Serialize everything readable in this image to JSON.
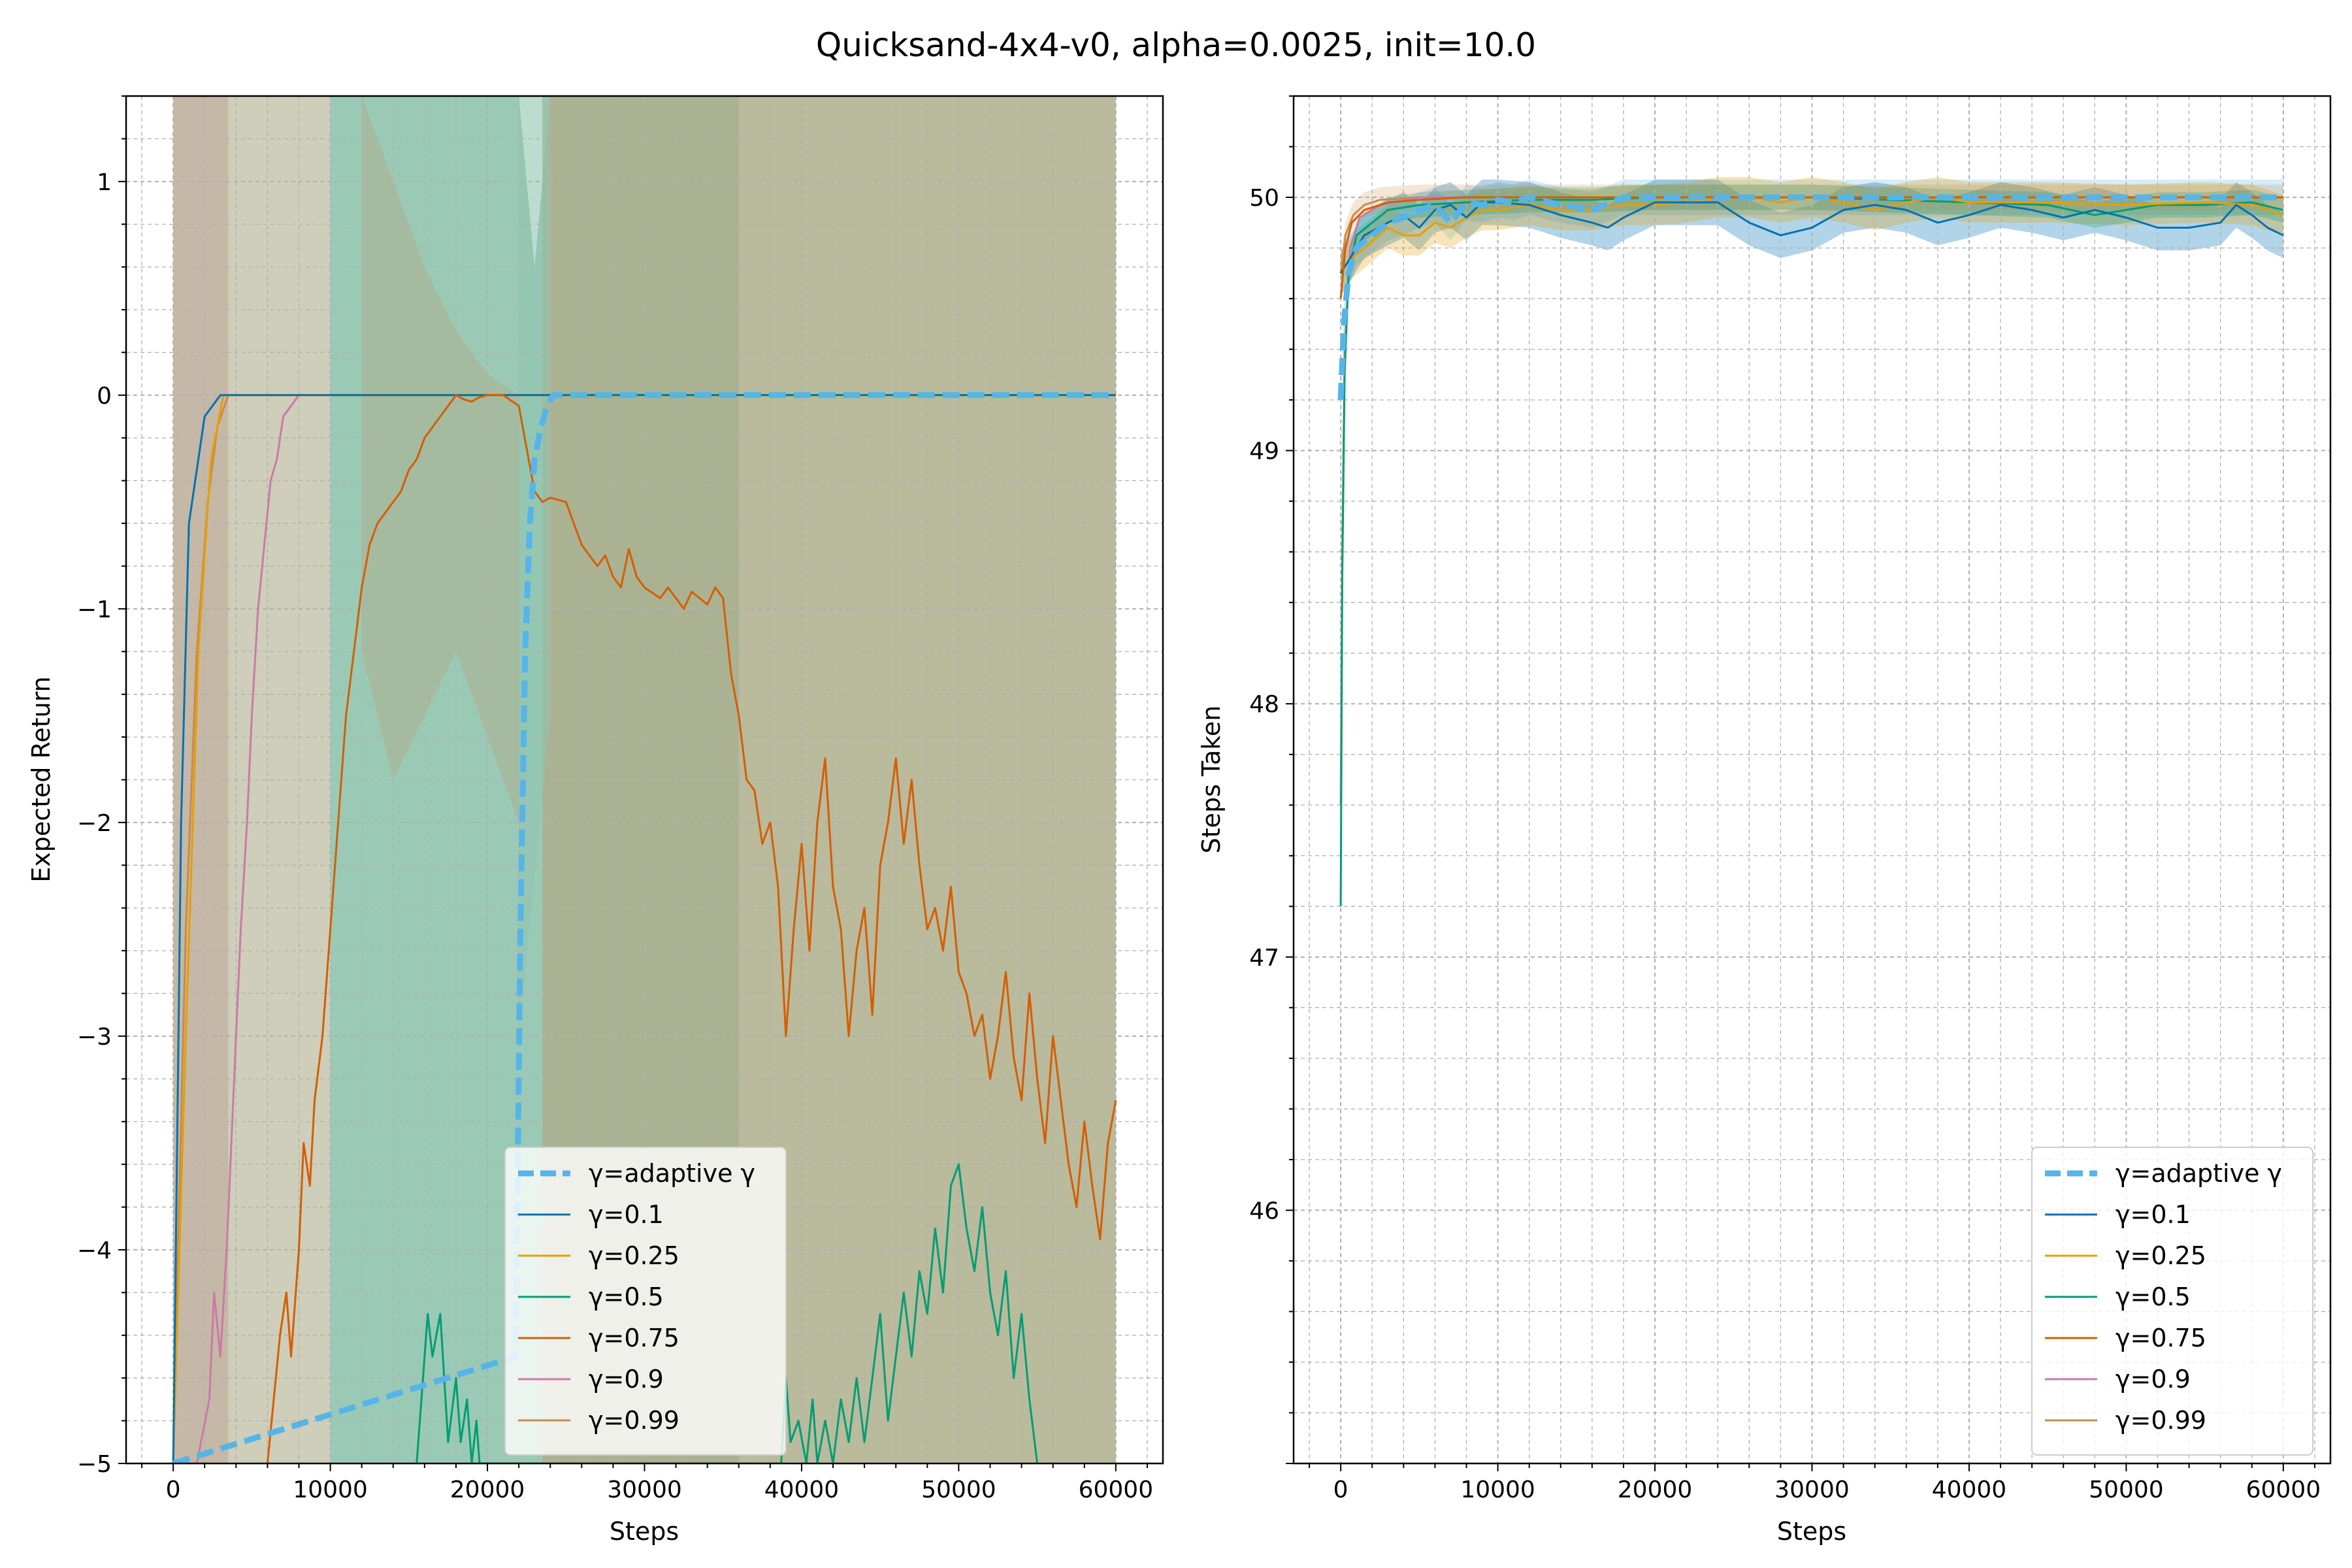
{
  "figure_title": "Quicksand-4x4-v0, alpha=0.0025, init=10.0",
  "colors": {
    "adaptive": "#56B4E9",
    "g0.1": "#0072B2",
    "g0.25": "#E69F00",
    "g0.5": "#009E73",
    "g0.75": "#D55E00",
    "g0.9": "#CC79A7",
    "g0.99": "#C98A4B",
    "band_teal": "#8FC4AE",
    "band_olive": "#AEAE8C",
    "band_pink": "#E3B9C2",
    "grid": "#b0b0b0"
  },
  "chart_data": [
    {
      "type": "line",
      "title": "",
      "xlabel": "Steps",
      "ylabel": "Expected Return",
      "xlim": [
        -3000,
        63000
      ],
      "ylim": [
        -5,
        1.4
      ],
      "xticks": [
        0,
        10000,
        20000,
        30000,
        40000,
        50000,
        60000
      ],
      "yticks": [
        -5,
        -4,
        -3,
        -2,
        -1,
        0,
        1
      ],
      "grid": true,
      "legend_position": "lower-center",
      "series": [
        {
          "name": "γ=adaptive γ",
          "key": "adaptive",
          "style": "dashed",
          "x": [
            0,
            21800,
            22100,
            22400,
            22700,
            23000,
            23400,
            23800,
            24200,
            24600,
            60000
          ],
          "y": [
            -5,
            -4.5,
            -2.5,
            -1.2,
            -0.6,
            -0.3,
            -0.15,
            -0.05,
            0,
            0,
            0
          ]
        },
        {
          "name": "γ=0.1",
          "key": "g0.1",
          "x": [
            0,
            500,
            1000,
            2000,
            3000,
            60000
          ],
          "y": [
            -5,
            -2,
            -0.6,
            -0.1,
            0,
            0
          ]
        },
        {
          "name": "γ=0.25",
          "key": "g0.25",
          "x": [
            0,
            800,
            1600,
            2400,
            3200,
            60000
          ],
          "y": [
            -5,
            -3,
            -1.2,
            -0.3,
            0,
            0
          ]
        },
        {
          "name": "γ=0.5",
          "key": "g0.5",
          "x": [
            15500,
            16200,
            16500,
            17000,
            17500,
            18000,
            18300,
            18700,
            19000,
            19300,
            19500,
            38700,
            39000,
            39300,
            39800,
            40300,
            40700,
            41000,
            41500,
            42000,
            42500,
            43000,
            43500,
            44000,
            44500,
            45000,
            45500,
            46000,
            46500,
            47000,
            47500,
            48000,
            48500,
            49000,
            49500,
            50000,
            50500,
            51000,
            51500,
            52000,
            52500,
            53000,
            53500,
            54000,
            54500,
            55000
          ],
          "y": [
            -5,
            -4.3,
            -4.5,
            -4.3,
            -4.9,
            -4.6,
            -4.9,
            -4.7,
            -5,
            -4.8,
            -5,
            -5,
            -4.6,
            -4.9,
            -4.8,
            -5,
            -4.7,
            -5,
            -4.8,
            -5,
            -4.7,
            -4.9,
            -4.6,
            -4.9,
            -4.6,
            -4.3,
            -4.8,
            -4.5,
            -4.2,
            -4.5,
            -4.1,
            -4.3,
            -3.9,
            -4.2,
            -3.7,
            -3.6,
            -3.9,
            -4.1,
            -3.8,
            -4.2,
            -4.4,
            -4.1,
            -4.6,
            -4.3,
            -4.7,
            -5
          ]
        },
        {
          "name": "γ=0.75",
          "key": "g0.75",
          "x": [
            6000,
            6400,
            6800,
            7200,
            7500,
            8000,
            8300,
            8700,
            9000,
            9500,
            10000,
            10500,
            11000,
            11500,
            12000,
            12500,
            13000,
            13500,
            14000,
            14500,
            15000,
            15500,
            16000,
            16500,
            17000,
            17500,
            18000,
            18500,
            19000,
            19500,
            20000,
            21000,
            22000,
            23000,
            23500,
            24000,
            25000,
            26000,
            26500,
            27000,
            27500,
            28000,
            28500,
            29000,
            29500,
            30000,
            31000,
            31500,
            32000,
            32500,
            33000,
            33500,
            34000,
            34500,
            35000,
            35500,
            36000,
            36500,
            37000,
            37500,
            38000,
            38500,
            39000,
            39500,
            40000,
            40500,
            41000,
            41500,
            42000,
            42500,
            43000,
            43500,
            44000,
            44500,
            45000,
            45500,
            46000,
            46500,
            47000,
            47500,
            48000,
            48500,
            49000,
            49500,
            50000,
            50500,
            51000,
            51500,
            52000,
            52500,
            53000,
            53500,
            54000,
            54500,
            55000,
            55500,
            56000,
            56500,
            57000,
            57500,
            58000,
            58500,
            59000,
            59500,
            60000
          ],
          "y": [
            -5,
            -4.7,
            -4.4,
            -4.2,
            -4.5,
            -4.0,
            -3.5,
            -3.7,
            -3.3,
            -3.0,
            -2.5,
            -2.0,
            -1.5,
            -1.2,
            -0.9,
            -0.7,
            -0.6,
            -0.55,
            -0.5,
            -0.45,
            -0.35,
            -0.3,
            -0.2,
            -0.15,
            -0.1,
            -0.05,
            0,
            -0.02,
            -0.03,
            -0.01,
            0,
            0,
            -0.05,
            -0.45,
            -0.5,
            -0.48,
            -0.5,
            -0.7,
            -0.75,
            -0.8,
            -0.75,
            -0.85,
            -0.9,
            -0.72,
            -0.85,
            -0.9,
            -0.95,
            -0.9,
            -0.95,
            -1.0,
            -0.92,
            -0.95,
            -0.98,
            -0.9,
            -0.95,
            -1.3,
            -1.5,
            -1.8,
            -1.85,
            -2.1,
            -2.0,
            -2.3,
            -3.0,
            -2.5,
            -2.1,
            -2.6,
            -2.0,
            -1.7,
            -2.3,
            -2.5,
            -3.0,
            -2.6,
            -2.4,
            -2.9,
            -2.2,
            -2.0,
            -1.7,
            -2.1,
            -1.8,
            -2.2,
            -2.5,
            -2.4,
            -2.6,
            -2.3,
            -2.7,
            -2.8,
            -3.0,
            -2.9,
            -3.2,
            -3.0,
            -2.7,
            -3.1,
            -3.3,
            -2.8,
            -3.2,
            -3.5,
            -3.0,
            -3.3,
            -3.6,
            -3.8,
            -3.4,
            -3.7,
            -3.95,
            -3.5,
            -3.3
          ]
        },
        {
          "name": "γ=0.9",
          "key": "g0.9",
          "x": [
            0,
            1500,
            2300,
            2600,
            3000,
            3400,
            3700,
            4000,
            4300,
            4700,
            5000,
            5400,
            5800,
            6200,
            6600,
            7000,
            7500,
            8000
          ],
          "y": [
            -5,
            -5,
            -4.7,
            -4.2,
            -4.5,
            -4.0,
            -3.5,
            -3.0,
            -2.5,
            -2.0,
            -1.5,
            -1.0,
            -0.7,
            -0.4,
            -0.3,
            -0.1,
            -0.05,
            0
          ]
        },
        {
          "name": "γ=0.99",
          "key": "g0.99",
          "x": [
            0,
            300,
            800,
            1500,
            2200,
            2800,
            3500,
            60000
          ],
          "y": [
            -5,
            -4,
            -2.5,
            -1.2,
            -0.5,
            -0.15,
            0,
            0
          ]
        }
      ]
    },
    {
      "type": "line",
      "title": "",
      "xlabel": "Steps",
      "ylabel": "Steps Taken",
      "xlim": [
        -3000,
        63000
      ],
      "ylim": [
        45.0,
        50.4
      ],
      "xticks": [
        0,
        10000,
        20000,
        30000,
        40000,
        50000,
        60000
      ],
      "yticks": [
        46,
        47,
        48,
        49,
        50
      ],
      "grid": true,
      "legend_position": "lower-right",
      "series": [
        {
          "name": "γ=adaptive γ",
          "key": "adaptive",
          "style": "dashed",
          "x": [
            0,
            200,
            500,
            1000,
            2000,
            3000,
            4000,
            5000,
            6000,
            7000,
            8000,
            9000,
            10000,
            11000,
            12000,
            14000,
            16000,
            18000,
            20000,
            24000,
            60000
          ],
          "y": [
            49.2,
            49.5,
            49.7,
            49.8,
            49.85,
            49.9,
            49.92,
            49.95,
            49.97,
            49.9,
            49.98,
            49.97,
            49.99,
            49.98,
            50.0,
            49.97,
            49.95,
            50.0,
            50.0,
            50.0,
            50.0
          ]
        },
        {
          "name": "γ=0.1",
          "key": "g0.1",
          "x": [
            0,
            500,
            1500,
            3000,
            4000,
            5000,
            6000,
            7000,
            8000,
            9000,
            10000,
            12000,
            14000,
            16000,
            17000,
            18000,
            19000,
            20000,
            24000,
            26000,
            28000,
            30000,
            32000,
            34000,
            36000,
            38000,
            40000,
            42000,
            44000,
            46000,
            48000,
            50000,
            52000,
            54000,
            56000,
            57000,
            58000,
            59000,
            60000
          ],
          "y": [
            49.7,
            49.75,
            49.85,
            49.9,
            49.93,
            49.88,
            49.95,
            49.97,
            49.92,
            49.98,
            49.98,
            49.97,
            49.93,
            49.9,
            49.88,
            49.92,
            49.95,
            49.98,
            49.98,
            49.9,
            49.85,
            49.88,
            49.95,
            49.97,
            49.95,
            49.9,
            49.93,
            49.97,
            49.95,
            49.92,
            49.95,
            49.92,
            49.88,
            49.88,
            49.9,
            49.97,
            49.93,
            49.88,
            49.85
          ]
        },
        {
          "name": "γ=0.25",
          "key": "g0.25",
          "x": [
            0,
            500,
            1500,
            3000,
            4000,
            5000,
            6000,
            7000,
            8000,
            9000,
            10000,
            12000,
            14000,
            16000,
            18000,
            20000,
            22000,
            24000,
            26000,
            28000,
            30000,
            32000,
            34000,
            36000,
            38000,
            40000,
            45000,
            50000,
            55000,
            58000,
            60000
          ],
          "y": [
            49.7,
            49.75,
            49.8,
            49.88,
            49.85,
            49.85,
            49.9,
            49.88,
            49.92,
            49.95,
            49.95,
            49.97,
            49.95,
            49.95,
            49.97,
            49.97,
            49.98,
            50.0,
            50.0,
            49.98,
            50.0,
            49.98,
            49.95,
            49.98,
            50.0,
            49.98,
            49.98,
            49.97,
            49.98,
            49.97,
            49.93
          ]
        },
        {
          "name": "γ=0.5",
          "key": "g0.5",
          "x": [
            0,
            100,
            250,
            500,
            1000,
            2000,
            3000,
            5000,
            8000,
            12000,
            16000,
            20000,
            30000,
            40000,
            45000,
            48000,
            50000,
            52000,
            55000,
            58000,
            60000
          ],
          "y": [
            47.2,
            48.5,
            49.3,
            49.7,
            49.85,
            49.9,
            49.95,
            49.97,
            49.98,
            49.99,
            49.99,
            50.0,
            50.0,
            49.98,
            49.97,
            49.93,
            49.95,
            49.97,
            49.97,
            49.98,
            49.95
          ]
        },
        {
          "name": "γ=0.75",
          "key": "g0.75",
          "x": [
            0,
            300,
            700,
            1500,
            3000,
            5000,
            8000,
            10000,
            20000,
            40000,
            60000
          ],
          "y": [
            49.6,
            49.8,
            49.9,
            49.95,
            49.98,
            49.99,
            50.0,
            50.0,
            50.0,
            50.0,
            50.0
          ]
        },
        {
          "name": "γ=0.9",
          "key": "g0.9",
          "x": [
            0,
            100,
            250,
            600,
            1200,
            2500,
            5000,
            60000
          ],
          "y": [
            47.6,
            48.6,
            49.4,
            49.8,
            49.92,
            49.97,
            50.0,
            50.0
          ]
        },
        {
          "name": "γ=0.99",
          "key": "g0.99",
          "x": [
            0,
            300,
            800,
            1500,
            2500,
            5000,
            60000
          ],
          "y": [
            49.7,
            49.85,
            49.93,
            49.97,
            49.99,
            50.0,
            50.0
          ]
        }
      ]
    }
  ]
}
